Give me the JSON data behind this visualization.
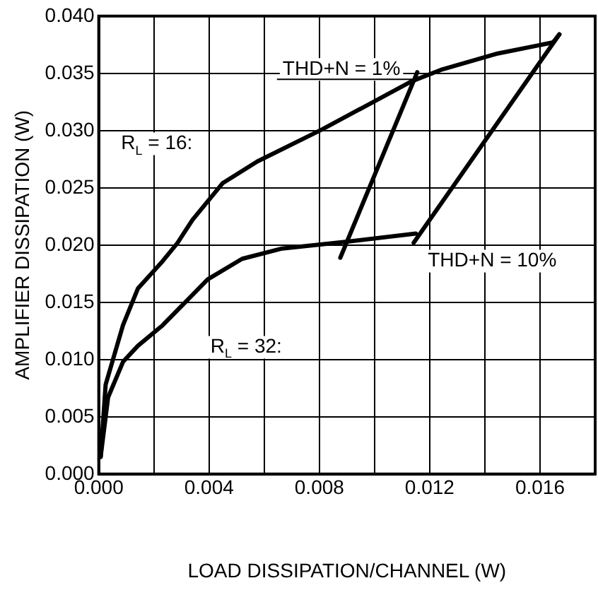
{
  "chart_data": {
    "type": "line",
    "xlabel": "LOAD DISSIPATION/CHANNEL (W)",
    "ylabel": "AMPLIFIER DISSIPATION (W)",
    "xlim": [
      0,
      0.018
    ],
    "ylim": [
      0,
      0.04
    ],
    "xticks": [
      {
        "value": 0,
        "label": "0.000"
      },
      {
        "value": 0.002,
        "label": null
      },
      {
        "value": 0.004,
        "label": "0.004"
      },
      {
        "value": 0.006,
        "label": null
      },
      {
        "value": 0.008,
        "label": "0.008"
      },
      {
        "value": 0.01,
        "label": null
      },
      {
        "value": 0.012,
        "label": "0.012"
      },
      {
        "value": 0.014,
        "label": null
      },
      {
        "value": 0.016,
        "label": "0.016"
      }
    ],
    "yticks": [
      {
        "value": 0,
        "label": "0.000"
      },
      {
        "value": 0.005,
        "label": "0.005"
      },
      {
        "value": 0.01,
        "label": "0.010"
      },
      {
        "value": 0.015,
        "label": "0.015"
      },
      {
        "value": 0.02,
        "label": "0.020"
      },
      {
        "value": 0.025,
        "label": "0.025"
      },
      {
        "value": 0.03,
        "label": "0.030"
      },
      {
        "value": 0.035,
        "label": "0.035"
      },
      {
        "value": 0.04,
        "label": "0.040"
      }
    ],
    "grid": true,
    "legend": false,
    "marker": "none",
    "line_style": "solid",
    "series": [
      {
        "name": "R$_{L}$ = 16:",
        "color": "#000000",
        "x": [
          7e-05,
          0.00025,
          0.00088,
          0.00142,
          0.00232,
          0.00286,
          0.0034,
          0.00449,
          0.00575,
          0.0081,
          0.01134,
          0.0124,
          0.0144,
          0.01647,
          0.0167
        ],
        "values": [
          0.0015,
          0.0078,
          0.013,
          0.0162,
          0.0186,
          0.0202,
          0.0222,
          0.0254,
          0.0273,
          0.0301,
          0.0343,
          0.0353,
          0.0367,
          0.0377,
          0.0384
        ]
      },
      {
        "name": "R$_{L}$ = 32:",
        "color": "#000000",
        "x": [
          7e-05,
          0.00034,
          0.00088,
          0.00142,
          0.00232,
          0.00395,
          0.0052,
          0.00665,
          0.009,
          0.0115
        ],
        "values": [
          0.0015,
          0.0067,
          0.0098,
          0.0112,
          0.013,
          0.017,
          0.0188,
          0.0197,
          0.0203,
          0.021
        ]
      },
      {
        "name": "THD+N = 1%",
        "color": "#000000",
        "x": [
          0.00876,
          0.01155
        ],
        "values": [
          0.0189,
          0.0351
        ]
      },
      {
        "name": "THD+N = 10%",
        "color": "#000000",
        "x": [
          0.01142,
          0.0167
        ],
        "values": [
          0.0202,
          0.0384
        ]
      }
    ]
  }
}
